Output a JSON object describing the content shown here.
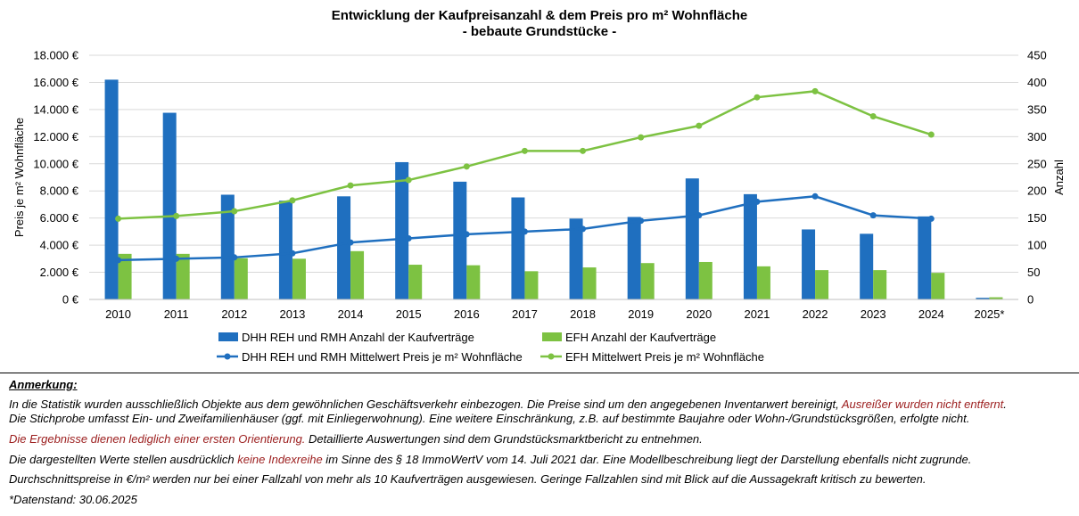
{
  "chart_data": {
    "type": "bar+line",
    "title": "Entwicklung der Kaufpreisanzahl & dem Preis pro m² Wohnfläche",
    "subtitle": "- bebaute Grundstücke -",
    "categories": [
      "2010",
      "2011",
      "2012",
      "2013",
      "2014",
      "2015",
      "2016",
      "2017",
      "2018",
      "2019",
      "2020",
      "2021",
      "2022",
      "2023",
      "2024",
      "2025*"
    ],
    "ylabel_left": "Preis je m² Wohnfläche",
    "ylabel_right": "Anzahl",
    "ylim_left": [
      0,
      18000
    ],
    "ylim_right": [
      0,
      450
    ],
    "left_ticks": [
      "0 €",
      "2.000 €",
      "4.000 €",
      "6.000 €",
      "8.000 €",
      "10.000 €",
      "12.000 €",
      "14.000 €",
      "16.000 €",
      "18.000 €"
    ],
    "right_ticks": [
      "0",
      "50",
      "100",
      "150",
      "200",
      "250",
      "300",
      "350",
      "400",
      "450"
    ],
    "grid": true,
    "legend_position": "bottom",
    "series": [
      {
        "name": "DHH REH und RMH Anzahl der Kaufverträge",
        "kind": "bar",
        "axis": "right",
        "color": "#1f6fbf",
        "values": [
          405,
          344,
          193,
          182,
          190,
          253,
          217,
          188,
          149,
          152,
          223,
          194,
          129,
          121,
          153,
          3
        ]
      },
      {
        "name": "EFH Anzahl der Kaufverträge",
        "kind": "bar",
        "axis": "right",
        "color": "#7dc242",
        "values": [
          84,
          84,
          76,
          75,
          89,
          64,
          63,
          52,
          59,
          67,
          69,
          61,
          54,
          54,
          49,
          4
        ]
      },
      {
        "name": "DHH REH und RMH Mittelwert Preis je m² Wohnfläche",
        "kind": "line",
        "axis": "left",
        "color": "#1f6fbf",
        "values": [
          2900,
          3000,
          3100,
          3400,
          4200,
          4500,
          4800,
          5000,
          5200,
          5800,
          6200,
          7200,
          7600,
          6200,
          5950,
          null
        ]
      },
      {
        "name": "EFH Mittelwert Preis je m² Wohnfläche",
        "kind": "line",
        "axis": "left",
        "color": "#7dc242",
        "values": [
          5950,
          6150,
          6500,
          7300,
          8400,
          8800,
          9800,
          10950,
          10950,
          11950,
          12800,
          14900,
          15350,
          13500,
          12150,
          null
        ]
      }
    ]
  },
  "notes": {
    "heading": "Anmerkung:",
    "line1_a": "In die Statistik wurden ausschließlich Objekte aus dem gewöhnlichen Geschäftsverkehr einbezogen. Die Preise sind um den angegebenen Inventarwert bereinigt, ",
    "line1_b": "Ausreißer wurden nicht entfernt",
    "line1_c": ".",
    "line2": "Die Stichprobe umfasst Ein- und Zweifamilienhäuser (ggf. mit Einliegerwohnung). Eine weitere Einschränkung, z.B. auf bestimmte Baujahre oder Wohn-/Grundstücksgrößen, erfolgte nicht.",
    "line3_a": "Die Ergebnisse dienen lediglich einer ersten Orientierung.",
    "line3_b": " Detaillierte Auswertungen sind dem Grundstücksmarktbericht zu entnehmen.",
    "line4_a": "Die dargestellten Werte stellen ausdrücklich ",
    "line4_b": "keine Indexreihe",
    "line4_c": " im Sinne des § 18 ImmoWertV vom 14. Juli 2021 dar. Eine Modellbeschreibung liegt der Darstellung ebenfalls nicht zugrunde.",
    "line5": "Durchschnittspreise in €/m² werden nur bei einer Fallzahl von mehr als 10 Kaufverträgen ausgewiesen. Geringe Fallzahlen sind mit Blick auf die Aussagekraft kritisch zu bewerten.",
    "line6": "*Datenstand: 30.06.2025"
  }
}
